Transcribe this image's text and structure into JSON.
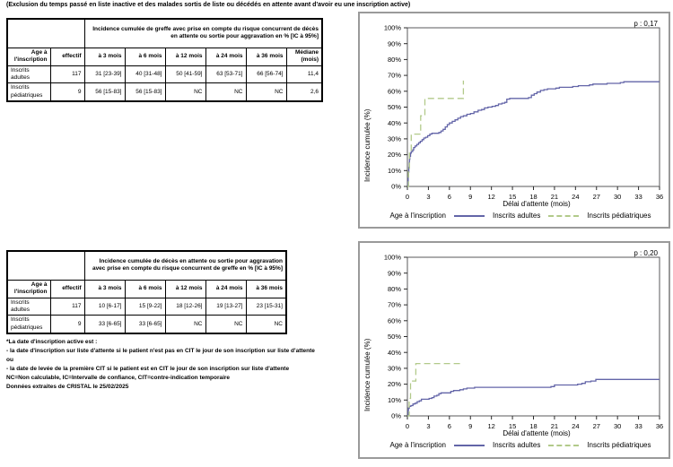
{
  "page_title": "(Exclusion du temps passé en liste inactive et des malades sortis de liste ou décédés en attente avant d'avoir eu une inscription active)",
  "table1": {
    "group_header": "Incidence cumulée de greffe avec prise en compte du risque concurrent de décès en attente ou sortie pour aggravation en % [IC à 95%]",
    "headers": {
      "age": "Age à l'inscription",
      "effectif": "effectif",
      "m3": "à 3 mois",
      "m6": "à 6 mois",
      "m12": "à 12 mois",
      "m24": "à 24 mois",
      "m36": "à 36 mois",
      "mediane": "Médiane (mois)"
    },
    "rows": [
      {
        "label": "Inscrits adultes",
        "effectif": "117",
        "m3": "31 [23-39]",
        "m6": "40 [31-48]",
        "m12": "50 [41-59]",
        "m24": "63 [53-71]",
        "m36": "66 [56-74]",
        "mediane": "11,4"
      },
      {
        "label": "Inscrits pédiatriques",
        "effectif": "9",
        "m3": "56 [15-83]",
        "m6": "56 [15-83]",
        "m12": "NC",
        "m24": "NC",
        "m36": "NC",
        "mediane": "2,6"
      }
    ]
  },
  "table2": {
    "group_header": "Incidence cumulée de décès en attente ou sortie pour aggravation avec prise en compte du risque concurrent de greffe en % [IC à 95%]",
    "headers": {
      "age": "Age à l'inscription",
      "effectif": "effectif",
      "m3": "à 3 mois",
      "m6": "à 6 mois",
      "m12": "à 12 mois",
      "m24": "à 24 mois",
      "m36": "à 36 mois"
    },
    "rows": [
      {
        "label": "Inscrits adultes",
        "effectif": "117",
        "m3": "10 [6-17]",
        "m6": "15 [9-22]",
        "m12": "18 [12-26]",
        "m24": "19 [13-27]",
        "m36": "23 [15-31]"
      },
      {
        "label": "Inscrits pédiatriques",
        "effectif": "9",
        "m3": "33 [6-65]",
        "m6": "33 [6-65]",
        "m12": "NC",
        "m24": "NC",
        "m36": "NC"
      }
    ]
  },
  "footnotes": {
    "l1": "*La date d'inscription active est :",
    "l2": "- la date d'inscription sur liste d'attente si le patient n'est pas en CIT le jour de son inscription sur liste d'attente",
    "l3": "ou",
    "l4": "- la date de levée de la première CIT si le patient est en CIT le jour de son inscription sur liste d'attente",
    "l5": "NC=Non calculable, IC=Intervalle de confiance, CIT=contre-indication temporaire",
    "l6": "Données extraites de CRISTAL le 25/02/2025"
  },
  "colors": {
    "adultes": "#6365a8",
    "pediatriques": "#b2ca8a",
    "plot_border": "#59595b",
    "box_border": "#9a9a9a"
  },
  "chart_data": [
    {
      "type": "line",
      "subtype": "step",
      "p_value": "p : 0,17",
      "xlabel": "Délai d'attente (mois)",
      "ylabel": "Incidence cumulée (%)",
      "legend_title": "Age à l'inscription",
      "xlim": [
        0,
        36
      ],
      "ylim": [
        0,
        100
      ],
      "xticks": [
        0,
        3,
        6,
        9,
        12,
        15,
        18,
        21,
        24,
        27,
        30,
        33,
        36
      ],
      "yticks": [
        0,
        10,
        20,
        30,
        40,
        50,
        60,
        70,
        80,
        90,
        100
      ],
      "grid": false,
      "legend_position": "bottom",
      "series": [
        {
          "name": "Inscrits adultes",
          "color": "#6365a8",
          "dash": "solid",
          "points": [
            [
              0,
              0
            ],
            [
              0.08,
              3
            ],
            [
              0.12,
              6
            ],
            [
              0.16,
              9
            ],
            [
              0.2,
              12
            ],
            [
              0.25,
              15
            ],
            [
              0.3,
              17
            ],
            [
              0.35,
              19
            ],
            [
              0.45,
              21
            ],
            [
              0.55,
              22
            ],
            [
              0.75,
              23
            ],
            [
              0.9,
              24.5
            ],
            [
              1.1,
              25.5
            ],
            [
              1.35,
              26.5
            ],
            [
              1.6,
              27.5
            ],
            [
              1.85,
              28.5
            ],
            [
              2.1,
              29.5
            ],
            [
              2.35,
              30.5
            ],
            [
              2.6,
              31
            ],
            [
              2.9,
              32
            ],
            [
              3.2,
              33
            ],
            [
              3.5,
              33.5
            ],
            [
              4.5,
              34
            ],
            [
              4.8,
              35
            ],
            [
              5.1,
              36
            ],
            [
              5.4,
              37.5
            ],
            [
              5.7,
              39
            ],
            [
              6.0,
              40
            ],
            [
              6.4,
              41
            ],
            [
              6.8,
              42
            ],
            [
              7.2,
              43
            ],
            [
              7.6,
              44
            ],
            [
              8.0,
              44.5
            ],
            [
              8.5,
              45.5
            ],
            [
              9.0,
              46
            ],
            [
              9.5,
              47
            ],
            [
              10.1,
              48
            ],
            [
              10.6,
              48.5
            ],
            [
              11.0,
              49.5
            ],
            [
              11.5,
              50
            ],
            [
              12.1,
              50.5
            ],
            [
              12.6,
              51
            ],
            [
              13.0,
              52
            ],
            [
              13.5,
              52.5
            ],
            [
              13.9,
              53
            ],
            [
              14.2,
              55
            ],
            [
              14.6,
              55.5
            ],
            [
              17.3,
              56
            ],
            [
              17.7,
              57.5
            ],
            [
              18.1,
              58.5
            ],
            [
              18.5,
              59.5
            ],
            [
              19.0,
              60.5
            ],
            [
              19.5,
              61
            ],
            [
              20.0,
              61.5
            ],
            [
              21.2,
              62
            ],
            [
              21.7,
              62.5
            ],
            [
              23.6,
              63
            ],
            [
              24.4,
              63.5
            ],
            [
              26.0,
              64
            ],
            [
              26.5,
              64.5
            ],
            [
              28.5,
              65
            ],
            [
              30.4,
              65.5
            ],
            [
              30.9,
              66
            ],
            [
              36,
              66
            ]
          ]
        },
        {
          "name": "Inscrits pédiatriques",
          "color": "#b2ca8a",
          "dash": "dashed",
          "points": [
            [
              0,
              0
            ],
            [
              0.15,
              11
            ],
            [
              0.3,
              22
            ],
            [
              0.55,
              33
            ],
            [
              1.9,
              44.5
            ],
            [
              2.5,
              55.5
            ],
            [
              8,
              55.5
            ],
            [
              8,
              66.7
            ]
          ]
        }
      ]
    },
    {
      "type": "line",
      "subtype": "step",
      "p_value": "p : 0,20",
      "xlabel": "Délai d'attente (mois)",
      "ylabel": "Incidence cumulée (%)",
      "legend_title": "Age à l'inscription",
      "xlim": [
        0,
        36
      ],
      "ylim": [
        0,
        100
      ],
      "xticks": [
        0,
        3,
        6,
        9,
        12,
        15,
        18,
        21,
        24,
        27,
        30,
        33,
        36
      ],
      "yticks": [
        0,
        10,
        20,
        30,
        40,
        50,
        60,
        70,
        80,
        90,
        100
      ],
      "grid": false,
      "legend_position": "bottom",
      "series": [
        {
          "name": "Inscrits adultes",
          "color": "#6365a8",
          "dash": "solid",
          "points": [
            [
              0,
              0
            ],
            [
              0.1,
              3.5
            ],
            [
              0.15,
              5
            ],
            [
              0.3,
              6
            ],
            [
              0.5,
              6.5
            ],
            [
              0.8,
              7.5
            ],
            [
              1.1,
              8
            ],
            [
              1.4,
              9
            ],
            [
              1.7,
              9.5
            ],
            [
              2.0,
              10.5
            ],
            [
              3.1,
              11
            ],
            [
              3.5,
              11.5
            ],
            [
              3.8,
              12.5
            ],
            [
              4.2,
              13
            ],
            [
              4.5,
              14
            ],
            [
              4.8,
              14.5
            ],
            [
              6.2,
              15.5
            ],
            [
              6.6,
              16
            ],
            [
              7.5,
              16.5
            ],
            [
              8.0,
              17
            ],
            [
              8.5,
              17.5
            ],
            [
              9.6,
              18
            ],
            [
              20.5,
              18.5
            ],
            [
              21.0,
              19.5
            ],
            [
              24.3,
              20
            ],
            [
              24.9,
              20.5
            ],
            [
              25.4,
              21.5
            ],
            [
              26.2,
              22
            ],
            [
              26.9,
              23
            ],
            [
              36,
              23
            ]
          ]
        },
        {
          "name": "Inscrits pédiatriques",
          "color": "#b2ca8a",
          "dash": "dashed",
          "points": [
            [
              0,
              0
            ],
            [
              0.25,
              11
            ],
            [
              0.45,
              22
            ],
            [
              1.2,
              33
            ],
            [
              8,
              33
            ]
          ]
        }
      ]
    }
  ]
}
